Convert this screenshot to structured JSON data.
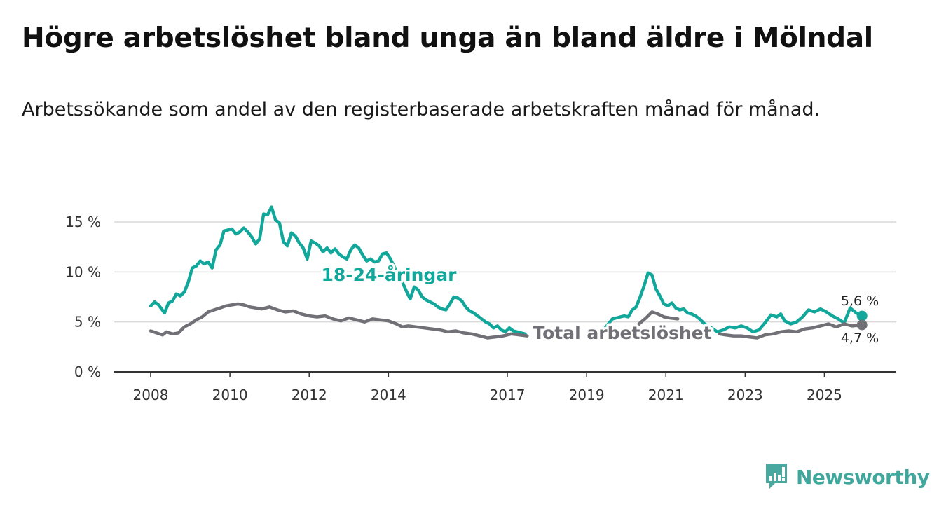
{
  "header": {
    "title": "Högre arbetslöshet bland unga än bland äldre i Mölndal",
    "subtitle": "Arbetssökande som andel av den registerbaserade arbetskraften månad för månad."
  },
  "brand": {
    "name": "Newsworthy",
    "icon": "bar-chart-exclamation-icon",
    "color": "#3fa79c"
  },
  "chart_data": {
    "type": "line",
    "title": "Högre arbetslöshet bland unga än bland äldre i Mölndal",
    "subtitle": "Arbetssökande som andel av den registerbaserade arbetskraften månad för månad.",
    "xlabel": "",
    "ylabel": "",
    "xlim": [
      2008,
      2026.4
    ],
    "ylim": [
      0,
      15
    ],
    "grid": true,
    "y_ticks": [
      0,
      5,
      10,
      15
    ],
    "y_tick_labels": [
      "0 %",
      "5 %",
      "10 %",
      "15 %"
    ],
    "x_ticks": [
      2008,
      2010,
      2012,
      2014,
      2017,
      2019,
      2021,
      2023,
      2025
    ],
    "x_tick_labels": [
      "2008",
      "2010",
      "2012",
      "2014",
      "2017",
      "2019",
      "2021",
      "2023",
      "2025"
    ],
    "series": [
      {
        "name": "18-24-åringar",
        "label": "18-24-åringar",
        "color": "#12a79b",
        "end_label": "5,6 %",
        "points": [
          [
            2008.0,
            6.6
          ],
          [
            2008.1,
            7.0
          ],
          [
            2008.2,
            6.7
          ],
          [
            2008.35,
            5.9
          ],
          [
            2008.45,
            6.9
          ],
          [
            2008.55,
            7.1
          ],
          [
            2008.65,
            7.8
          ],
          [
            2008.75,
            7.6
          ],
          [
            2008.85,
            8.0
          ],
          [
            2008.95,
            9.0
          ],
          [
            2009.05,
            10.4
          ],
          [
            2009.15,
            10.6
          ],
          [
            2009.25,
            11.1
          ],
          [
            2009.35,
            10.8
          ],
          [
            2009.45,
            11.0
          ],
          [
            2009.55,
            10.4
          ],
          [
            2009.65,
            12.2
          ],
          [
            2009.75,
            12.7
          ],
          [
            2009.85,
            14.1
          ],
          [
            2009.95,
            14.2
          ],
          [
            2010.05,
            14.3
          ],
          [
            2010.15,
            13.8
          ],
          [
            2010.25,
            14.0
          ],
          [
            2010.35,
            14.4
          ],
          [
            2010.45,
            14.0
          ],
          [
            2010.55,
            13.5
          ],
          [
            2010.65,
            12.8
          ],
          [
            2010.75,
            13.3
          ],
          [
            2010.85,
            15.8
          ],
          [
            2010.95,
            15.7
          ],
          [
            2011.05,
            16.5
          ],
          [
            2011.15,
            15.2
          ],
          [
            2011.25,
            14.9
          ],
          [
            2011.35,
            13.0
          ],
          [
            2011.45,
            12.6
          ],
          [
            2011.55,
            13.9
          ],
          [
            2011.65,
            13.6
          ],
          [
            2011.75,
            12.9
          ],
          [
            2011.85,
            12.4
          ],
          [
            2011.95,
            11.3
          ],
          [
            2012.05,
            13.1
          ],
          [
            2012.15,
            12.9
          ],
          [
            2012.25,
            12.6
          ],
          [
            2012.35,
            12.0
          ],
          [
            2012.45,
            12.4
          ],
          [
            2012.55,
            11.9
          ],
          [
            2012.65,
            12.3
          ],
          [
            2012.75,
            11.8
          ],
          [
            2012.85,
            11.5
          ],
          [
            2012.95,
            11.3
          ],
          [
            2013.05,
            12.2
          ],
          [
            2013.15,
            12.7
          ],
          [
            2013.25,
            12.4
          ],
          [
            2013.35,
            11.7
          ],
          [
            2013.45,
            11.1
          ],
          [
            2013.55,
            11.3
          ],
          [
            2013.65,
            11.0
          ],
          [
            2013.75,
            11.1
          ],
          [
            2013.85,
            11.8
          ],
          [
            2013.95,
            11.9
          ],
          [
            2014.05,
            11.3
          ],
          [
            2014.15,
            10.5
          ],
          [
            2014.25,
            9.8
          ],
          [
            2014.35,
            9.0
          ],
          [
            2014.45,
            8.1
          ],
          [
            2014.55,
            7.3
          ],
          [
            2014.65,
            8.5
          ],
          [
            2014.75,
            8.2
          ],
          [
            2014.85,
            7.5
          ],
          [
            2014.95,
            7.2
          ],
          [
            2015.05,
            7.0
          ],
          [
            2015.15,
            6.8
          ],
          [
            2015.25,
            6.5
          ],
          [
            2015.35,
            6.3
          ],
          [
            2015.45,
            6.2
          ],
          [
            2015.55,
            6.8
          ],
          [
            2015.65,
            7.5
          ],
          [
            2015.75,
            7.4
          ],
          [
            2015.85,
            7.1
          ],
          [
            2015.95,
            6.5
          ],
          [
            2016.05,
            6.1
          ],
          [
            2016.15,
            5.9
          ],
          [
            2016.25,
            5.6
          ],
          [
            2016.35,
            5.3
          ],
          [
            2016.45,
            5.0
          ],
          [
            2016.55,
            4.8
          ],
          [
            2016.65,
            4.4
          ],
          [
            2016.75,
            4.6
          ],
          [
            2016.85,
            4.2
          ],
          [
            2016.95,
            4.0
          ],
          [
            2017.05,
            4.4
          ],
          [
            2017.15,
            4.1
          ],
          [
            2017.25,
            4.0
          ],
          [
            2017.35,
            3.9
          ],
          [
            2017.45,
            3.8
          ],
          [
            2019.45,
            4.3
          ],
          [
            2019.55,
            4.8
          ],
          [
            2019.65,
            5.3
          ],
          [
            2019.75,
            5.4
          ],
          [
            2019.85,
            5.5
          ],
          [
            2019.95,
            5.6
          ],
          [
            2020.05,
            5.5
          ],
          [
            2020.15,
            6.2
          ],
          [
            2020.25,
            6.5
          ],
          [
            2020.35,
            7.5
          ],
          [
            2020.45,
            8.6
          ],
          [
            2020.55,
            9.9
          ],
          [
            2020.65,
            9.7
          ],
          [
            2020.75,
            8.3
          ],
          [
            2020.85,
            7.6
          ],
          [
            2020.95,
            6.8
          ],
          [
            2021.05,
            6.6
          ],
          [
            2021.15,
            6.9
          ],
          [
            2021.25,
            6.4
          ],
          [
            2021.35,
            6.2
          ],
          [
            2021.45,
            6.3
          ],
          [
            2021.55,
            5.9
          ],
          [
            2021.65,
            5.8
          ],
          [
            2021.75,
            5.6
          ],
          [
            2021.85,
            5.3
          ],
          [
            2021.95,
            4.9
          ],
          [
            2022.05,
            4.6
          ],
          [
            2022.15,
            4.4
          ],
          [
            2022.3,
            4.0
          ],
          [
            2022.45,
            4.2
          ],
          [
            2022.6,
            4.5
          ],
          [
            2022.75,
            4.4
          ],
          [
            2022.9,
            4.6
          ],
          [
            2023.05,
            4.4
          ],
          [
            2023.2,
            4.0
          ],
          [
            2023.35,
            4.2
          ],
          [
            2023.5,
            4.9
          ],
          [
            2023.65,
            5.7
          ],
          [
            2023.8,
            5.5
          ],
          [
            2023.9,
            5.8
          ],
          [
            2024.0,
            5.1
          ],
          [
            2024.15,
            4.8
          ],
          [
            2024.3,
            5.0
          ],
          [
            2024.45,
            5.5
          ],
          [
            2024.6,
            6.2
          ],
          [
            2024.75,
            6.0
          ],
          [
            2024.9,
            6.3
          ],
          [
            2025.05,
            6.0
          ],
          [
            2025.2,
            5.6
          ],
          [
            2025.35,
            5.3
          ],
          [
            2025.5,
            4.9
          ],
          [
            2025.65,
            6.4
          ],
          [
            2025.8,
            5.9
          ],
          [
            2025.95,
            5.6
          ]
        ]
      },
      {
        "name": "Total arbetslöshet",
        "label": "Total arbetslöshet",
        "color": "#707076",
        "end_label": "4,7 %",
        "points": [
          [
            2008.0,
            4.1
          ],
          [
            2008.15,
            3.9
          ],
          [
            2008.3,
            3.7
          ],
          [
            2008.4,
            4.0
          ],
          [
            2008.55,
            3.8
          ],
          [
            2008.7,
            3.9
          ],
          [
            2008.85,
            4.5
          ],
          [
            2009.0,
            4.8
          ],
          [
            2009.15,
            5.2
          ],
          [
            2009.3,
            5.5
          ],
          [
            2009.45,
            6.0
          ],
          [
            2009.6,
            6.2
          ],
          [
            2009.75,
            6.4
          ],
          [
            2009.9,
            6.6
          ],
          [
            2010.05,
            6.7
          ],
          [
            2010.2,
            6.8
          ],
          [
            2010.35,
            6.7
          ],
          [
            2010.5,
            6.5
          ],
          [
            2010.65,
            6.4
          ],
          [
            2010.8,
            6.3
          ],
          [
            2011.0,
            6.5
          ],
          [
            2011.2,
            6.2
          ],
          [
            2011.4,
            6.0
          ],
          [
            2011.6,
            6.1
          ],
          [
            2011.8,
            5.8
          ],
          [
            2012.0,
            5.6
          ],
          [
            2012.2,
            5.5
          ],
          [
            2012.4,
            5.6
          ],
          [
            2012.6,
            5.3
          ],
          [
            2012.8,
            5.1
          ],
          [
            2013.0,
            5.4
          ],
          [
            2013.2,
            5.2
          ],
          [
            2013.4,
            5.0
          ],
          [
            2013.6,
            5.3
          ],
          [
            2013.8,
            5.2
          ],
          [
            2014.0,
            5.1
          ],
          [
            2014.2,
            4.8
          ],
          [
            2014.35,
            4.5
          ],
          [
            2014.5,
            4.6
          ],
          [
            2014.7,
            4.5
          ],
          [
            2014.9,
            4.4
          ],
          [
            2015.1,
            4.3
          ],
          [
            2015.3,
            4.2
          ],
          [
            2015.5,
            4.0
          ],
          [
            2015.7,
            4.1
          ],
          [
            2015.9,
            3.9
          ],
          [
            2016.1,
            3.8
          ],
          [
            2016.3,
            3.6
          ],
          [
            2016.5,
            3.4
          ],
          [
            2016.7,
            3.5
          ],
          [
            2016.9,
            3.6
          ],
          [
            2017.1,
            3.8
          ],
          [
            2017.3,
            3.7
          ],
          [
            2017.5,
            3.6
          ],
          [
            2020.05,
            4.1
          ],
          [
            2020.2,
            4.3
          ],
          [
            2020.35,
            4.9
          ],
          [
            2020.5,
            5.4
          ],
          [
            2020.65,
            6.0
          ],
          [
            2020.8,
            5.8
          ],
          [
            2020.95,
            5.5
          ],
          [
            2021.1,
            5.4
          ],
          [
            2021.3,
            5.3
          ],
          [
            2022.35,
            3.8
          ],
          [
            2022.5,
            3.7
          ],
          [
            2022.7,
            3.6
          ],
          [
            2022.9,
            3.6
          ],
          [
            2023.1,
            3.5
          ],
          [
            2023.3,
            3.4
          ],
          [
            2023.5,
            3.7
          ],
          [
            2023.7,
            3.8
          ],
          [
            2023.9,
            4.0
          ],
          [
            2024.1,
            4.1
          ],
          [
            2024.3,
            4.0
          ],
          [
            2024.5,
            4.3
          ],
          [
            2024.7,
            4.4
          ],
          [
            2024.9,
            4.6
          ],
          [
            2025.1,
            4.8
          ],
          [
            2025.3,
            4.5
          ],
          [
            2025.5,
            4.8
          ],
          [
            2025.7,
            4.6
          ],
          [
            2025.95,
            4.7
          ]
        ]
      }
    ]
  }
}
